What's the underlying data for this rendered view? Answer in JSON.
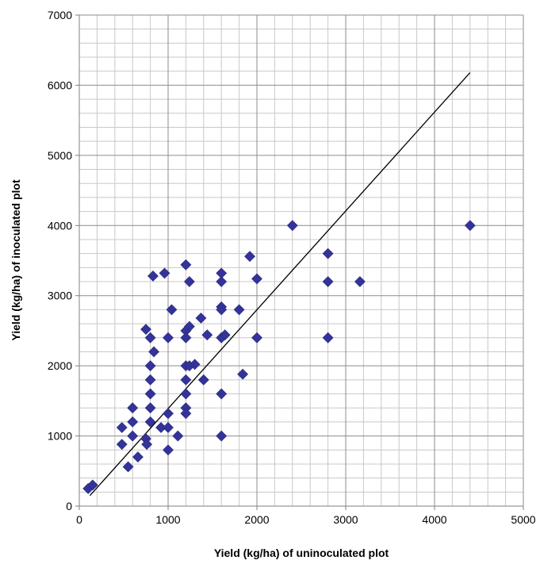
{
  "chart_data": {
    "type": "scatter",
    "title": "",
    "xlabel": "Yield (kg/ha) of uninoculated plot",
    "ylabel": "Yield (kg/ha) of inoculated plot",
    "xlim": [
      0,
      5000
    ],
    "ylim": [
      0,
      7000
    ],
    "x_ticks": [
      0,
      1000,
      2000,
      3000,
      4000,
      5000
    ],
    "y_ticks": [
      0,
      1000,
      2000,
      3000,
      4000,
      5000,
      6000,
      7000
    ],
    "grid": true,
    "legend": "none",
    "marker": "diamond",
    "marker_color": "#333399",
    "series": [
      {
        "points": [
          [
            100,
            250
          ],
          [
            150,
            300
          ],
          [
            480,
            1120
          ],
          [
            480,
            880
          ],
          [
            550,
            560
          ],
          [
            600,
            1400
          ],
          [
            600,
            1200
          ],
          [
            600,
            1000
          ],
          [
            660,
            700
          ],
          [
            750,
            2520
          ],
          [
            750,
            960
          ],
          [
            760,
            880
          ],
          [
            800,
            2400
          ],
          [
            800,
            2000
          ],
          [
            800,
            1800
          ],
          [
            800,
            1600
          ],
          [
            800,
            1400
          ],
          [
            800,
            1200
          ],
          [
            830,
            3280
          ],
          [
            840,
            2200
          ],
          [
            920,
            1120
          ],
          [
            960,
            3320
          ],
          [
            1000,
            2400
          ],
          [
            1000,
            1320
          ],
          [
            1000,
            1120
          ],
          [
            1000,
            800
          ],
          [
            1040,
            2800
          ],
          [
            1110,
            1000
          ],
          [
            1200,
            3440
          ],
          [
            1200,
            2500
          ],
          [
            1200,
            2400
          ],
          [
            1200,
            2000
          ],
          [
            1200,
            1800
          ],
          [
            1200,
            1600
          ],
          [
            1200,
            1400
          ],
          [
            1200,
            1320
          ],
          [
            1240,
            3200
          ],
          [
            1240,
            2560
          ],
          [
            1240,
            2000
          ],
          [
            1300,
            2020
          ],
          [
            1370,
            2680
          ],
          [
            1400,
            1800
          ],
          [
            1440,
            2440
          ],
          [
            1600,
            3320
          ],
          [
            1600,
            3200
          ],
          [
            1600,
            2840
          ],
          [
            1600,
            2800
          ],
          [
            1600,
            2400
          ],
          [
            1600,
            1600
          ],
          [
            1600,
            1000
          ],
          [
            1640,
            2440
          ],
          [
            1800,
            2800
          ],
          [
            1840,
            1880
          ],
          [
            1920,
            3560
          ],
          [
            2000,
            3240
          ],
          [
            2000,
            2400
          ],
          [
            2400,
            4000
          ],
          [
            2800,
            3600
          ],
          [
            2800,
            3200
          ],
          [
            2800,
            2400
          ],
          [
            3160,
            3200
          ],
          [
            4400,
            4000
          ]
        ]
      }
    ],
    "lines": [
      {
        "x": [
          120,
          4400
        ],
        "y": [
          150,
          6180
        ],
        "color": "#000000"
      }
    ]
  }
}
